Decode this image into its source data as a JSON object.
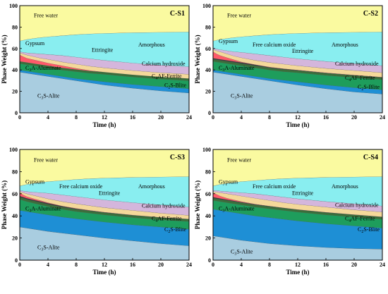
{
  "figure": {
    "x_axis_label": "Time (h)",
    "y_axis_label": "Phase Weight (%)"
  },
  "colors": {
    "alite": "#a9cde0",
    "belite": "#1e8fd5",
    "ferrite": "#1e9d5c",
    "aluminate": "#3a6f3a",
    "hydroxide": "#d4b6dc",
    "ettringite": "#f4d89a",
    "amorphous": "#89eef0",
    "free_water": "#fafaa0",
    "gypsum": "#ff5a6a",
    "free_calcium_oxide": "#3a3a3a"
  },
  "chart_data": [
    {
      "type": "area",
      "title": "C-S1",
      "x_ticks": [
        0,
        4,
        8,
        12,
        16,
        20,
        24
      ],
      "y_ticks": [
        0,
        20,
        40,
        60,
        80,
        100
      ],
      "xlim": [
        0,
        24
      ],
      "ylim": [
        0,
        100
      ],
      "stacking": "cumulative boundaries, bottom to top",
      "x": [
        0,
        0.5,
        1,
        2,
        3,
        4,
        6,
        8,
        10,
        12,
        16,
        20,
        24
      ],
      "series": [
        {
          "name": "C3S-Alite",
          "color_key": "alite",
          "upper": [
            38,
            37.5,
            37,
            36,
            35,
            34,
            32,
            30,
            28,
            26,
            23,
            20.5,
            18.5
          ]
        },
        {
          "name": "C2S-Blite",
          "color_key": "belite",
          "upper": [
            40,
            39.5,
            39,
            38,
            37,
            36,
            34,
            32,
            30.5,
            29,
            26.5,
            24.5,
            22.5
          ]
        },
        {
          "name": "C4AF-Ferrite",
          "color_key": "ferrite",
          "upper": [
            46,
            45.5,
            45,
            44,
            43,
            42,
            40,
            38.5,
            37,
            36,
            33.5,
            31.5,
            30
          ]
        },
        {
          "name": "C3A-Aluminate",
          "color_key": "aluminate",
          "upper": [
            48,
            47.5,
            47,
            46,
            45,
            44,
            42,
            40.5,
            39,
            38,
            35.5,
            33.5,
            32
          ]
        },
        {
          "name": "Gypsum",
          "color_key": "gypsum",
          "upper": [
            54,
            52.5,
            51,
            49.5,
            48,
            46.5,
            44,
            41.5,
            39.5,
            38,
            35.5,
            33.5,
            32
          ]
        },
        {
          "name": "Ettringite",
          "color_key": "ettringite",
          "upper": [
            56,
            55,
            54,
            52.5,
            51,
            50,
            47.5,
            45.5,
            43.5,
            42,
            39.5,
            37.5,
            36
          ]
        },
        {
          "name": "Calcium hydroxide",
          "color_key": "hydroxide",
          "upper": [
            57,
            56.5,
            56,
            55.5,
            55,
            54.5,
            53.5,
            52,
            50.5,
            49,
            46.5,
            44.5,
            43
          ]
        },
        {
          "name": "Amorphous",
          "color_key": "amorphous",
          "upper": [
            67,
            67.8,
            68.5,
            69.5,
            70.3,
            71,
            72,
            73,
            73.7,
            74.2,
            74.8,
            75.2,
            75.5
          ]
        },
        {
          "name": "Free water",
          "color_key": "free_water",
          "upper": [
            100,
            100,
            100,
            100,
            100,
            100,
            100,
            100,
            100,
            100,
            100,
            100,
            100
          ]
        }
      ],
      "labels": [
        {
          "text": "Free water",
          "x": 2,
          "y": 89
        },
        {
          "text": "Gypsum",
          "x": 0.8,
          "y": 63
        },
        {
          "text": "Amorphous",
          "x": 16.8,
          "y": 62
        },
        {
          "text": "Ettringite",
          "x": 10.2,
          "y": 57
        },
        {
          "text": "Calcium hydroxide",
          "x": 17.3,
          "y": 44
        },
        {
          "text": "C3A-Aluminate",
          "x": 0.8,
          "y": 40
        },
        {
          "text": "C4AF-Ferrite",
          "x": 18.7,
          "y": 32.5
        },
        {
          "text": "C2S-Blite",
          "x": 20.5,
          "y": 24
        },
        {
          "text": "C3S-Alite",
          "x": 2.5,
          "y": 14
        }
      ]
    },
    {
      "type": "area",
      "title": "C-S2",
      "x_ticks": [
        0,
        4,
        8,
        12,
        16,
        20,
        24
      ],
      "y_ticks": [
        0,
        20,
        40,
        60,
        80,
        100
      ],
      "xlim": [
        0,
        24
      ],
      "ylim": [
        0,
        100
      ],
      "stacking": "cumulative boundaries, bottom to top",
      "x": [
        0,
        0.5,
        1,
        2,
        3,
        4,
        6,
        8,
        10,
        12,
        16,
        20,
        24
      ],
      "series": [
        {
          "name": "C3S-Alite",
          "color_key": "alite",
          "upper": [
            38,
            37.5,
            37,
            36,
            35,
            34,
            32,
            30,
            28,
            26,
            22.5,
            19.5,
            17.5
          ]
        },
        {
          "name": "C2S-Blite",
          "color_key": "belite",
          "upper": [
            40,
            39.5,
            39,
            38,
            37,
            36,
            34,
            32,
            30.5,
            29,
            26,
            23.5,
            21.5
          ]
        },
        {
          "name": "C4AF-Ferrite",
          "color_key": "ferrite",
          "upper": [
            48,
            47.5,
            47,
            46,
            45,
            44,
            42,
            40,
            38.5,
            37.5,
            35,
            33,
            31
          ]
        },
        {
          "name": "C3A-Aluminate",
          "color_key": "aluminate",
          "upper": [
            50,
            49.5,
            49,
            48,
            47,
            46,
            44,
            42,
            40.5,
            39.5,
            37,
            35,
            33
          ]
        },
        {
          "name": "Free calcium oxide",
          "color_key": "free_calcium_oxide",
          "upper": [
            51,
            50.5,
            50,
            49,
            48,
            47,
            44.8,
            42.5,
            41,
            39.8,
            37.2,
            35.1,
            33.1
          ]
        },
        {
          "name": "Gypsum",
          "color_key": "gypsum",
          "upper": [
            57,
            55,
            53.5,
            51.5,
            49.5,
            47.5,
            45,
            42.8,
            41.2,
            40,
            37.4,
            35.3,
            33.3
          ]
        },
        {
          "name": "Ettringite",
          "color_key": "ettringite",
          "upper": [
            59,
            58,
            57,
            55,
            53,
            51.5,
            49,
            47,
            45.5,
            44,
            41.5,
            39.5,
            37.5
          ]
        },
        {
          "name": "Calcium hydroxide",
          "color_key": "hydroxide",
          "upper": [
            60,
            59.5,
            59,
            58,
            57,
            56.5,
            55,
            53.5,
            52,
            50.5,
            48,
            46,
            44
          ]
        },
        {
          "name": "Amorphous",
          "color_key": "amorphous",
          "upper": [
            67,
            67.8,
            68.5,
            69.5,
            70.3,
            71,
            72,
            73,
            73.7,
            74.2,
            74.8,
            75.2,
            75.5
          ]
        },
        {
          "name": "Free water",
          "color_key": "free_water",
          "upper": [
            100,
            100,
            100,
            100,
            100,
            100,
            100,
            100,
            100,
            100,
            100,
            100,
            100
          ]
        }
      ],
      "labels": [
        {
          "text": "Free water",
          "x": 2,
          "y": 89
        },
        {
          "text": "Gypsum",
          "x": 0.8,
          "y": 65
        },
        {
          "text": "Free calcium oxide",
          "x": 5.6,
          "y": 62
        },
        {
          "text": "Amorphous",
          "x": 16.8,
          "y": 62
        },
        {
          "text": "Ettringite",
          "x": 11.2,
          "y": 56
        },
        {
          "text": "Calcium hydroxide",
          "x": 17.3,
          "y": 44
        },
        {
          "text": "C3A-Aluminate",
          "x": 0.8,
          "y": 40
        },
        {
          "text": "C4AF-Ferrite",
          "x": 18.7,
          "y": 31
        },
        {
          "text": "C2S-Blite",
          "x": 20.5,
          "y": 22.5
        },
        {
          "text": "C3S-Alite",
          "x": 2.5,
          "y": 14
        }
      ]
    },
    {
      "type": "area",
      "title": "C-S3",
      "x_ticks": [
        0,
        4,
        8,
        12,
        16,
        20,
        24
      ],
      "y_ticks": [
        0,
        20,
        40,
        60,
        80,
        100
      ],
      "xlim": [
        0,
        24
      ],
      "ylim": [
        0,
        100
      ],
      "stacking": "cumulative boundaries, bottom to top",
      "x": [
        0,
        0.5,
        1,
        2,
        3,
        4,
        6,
        8,
        10,
        12,
        16,
        20,
        24
      ],
      "series": [
        {
          "name": "C3S-Alite",
          "color_key": "alite",
          "upper": [
            30,
            29.5,
            29,
            28,
            27,
            26,
            24.5,
            23,
            21.5,
            20,
            17.5,
            15,
            13
          ]
        },
        {
          "name": "C2S-Blite",
          "color_key": "belite",
          "upper": [
            45,
            44.5,
            44,
            43,
            42,
            41,
            39,
            37.5,
            36,
            34.5,
            32,
            30,
            28
          ]
        },
        {
          "name": "C4AF-Ferrite",
          "color_key": "ferrite",
          "upper": [
            55,
            54,
            53,
            51.5,
            50,
            48.5,
            46,
            44,
            42.5,
            41,
            38.5,
            36.5,
            35
          ]
        },
        {
          "name": "C3A-Aluminate",
          "color_key": "aluminate",
          "upper": [
            57,
            56,
            55,
            53.5,
            52,
            50.5,
            48,
            46,
            44.5,
            43,
            40.5,
            38.5,
            37
          ]
        },
        {
          "name": "Free calcium oxide",
          "color_key": "free_calcium_oxide",
          "upper": [
            58,
            57,
            56,
            54.5,
            53,
            51.5,
            48.8,
            46.5,
            44.8,
            43.2,
            40.7,
            38.6,
            37.1
          ]
        },
        {
          "name": "Gypsum",
          "color_key": "gypsum",
          "upper": [
            61,
            59,
            57.5,
            55.5,
            53.8,
            52,
            49,
            46.8,
            45,
            43.4,
            40.8,
            38.7,
            37.2
          ]
        },
        {
          "name": "Ettringite",
          "color_key": "ettringite",
          "upper": [
            62,
            61,
            60,
            58.5,
            57,
            55.5,
            53,
            51,
            49.2,
            47.5,
            45,
            42.5,
            40.5
          ]
        },
        {
          "name": "Calcium hydroxide",
          "color_key": "hydroxide",
          "upper": [
            63,
            62.5,
            62,
            61.5,
            61,
            60.5,
            59,
            57.5,
            56,
            54.5,
            52,
            50,
            48
          ]
        },
        {
          "name": "Amorphous",
          "color_key": "amorphous",
          "upper": [
            67,
            67.8,
            68.5,
            69.5,
            70.3,
            71,
            72,
            73,
            73.7,
            74.2,
            74.8,
            75.2,
            75.5
          ]
        },
        {
          "name": "Free water",
          "color_key": "free_water",
          "upper": [
            100,
            100,
            100,
            100,
            100,
            100,
            100,
            100,
            100,
            100,
            100,
            100,
            100
          ]
        }
      ],
      "labels": [
        {
          "text": "Free water",
          "x": 2,
          "y": 89
        },
        {
          "text": "Gypsum",
          "x": 0.8,
          "y": 69
        },
        {
          "text": "Free calcium oxide",
          "x": 5.6,
          "y": 65
        },
        {
          "text": "Amorphous",
          "x": 16.8,
          "y": 65
        },
        {
          "text": "Ettringite",
          "x": 11.2,
          "y": 59
        },
        {
          "text": "Calcium hydroxide",
          "x": 17.3,
          "y": 47.5
        },
        {
          "text": "C3A-Aluminate",
          "x": 0.8,
          "y": 45
        },
        {
          "text": "C4AF-Ferrite",
          "x": 18.7,
          "y": 36
        },
        {
          "text": "C2S-Blite",
          "x": 20.5,
          "y": 26
        },
        {
          "text": "C3S-Alite",
          "x": 2.5,
          "y": 10
        }
      ]
    },
    {
      "type": "area",
      "title": "C-S4",
      "x_ticks": [
        0,
        4,
        8,
        12,
        16,
        20,
        24
      ],
      "y_ticks": [
        0,
        20,
        40,
        60,
        80,
        100
      ],
      "xlim": [
        0,
        24
      ],
      "ylim": [
        0,
        100
      ],
      "stacking": "cumulative boundaries, bottom to top",
      "x": [
        0,
        0.5,
        1,
        2,
        3,
        4,
        6,
        8,
        10,
        12,
        16,
        20,
        24
      ],
      "series": [
        {
          "name": "C3S-Alite",
          "color_key": "alite",
          "upper": [
            22,
            21.5,
            21,
            20,
            19,
            18,
            16.5,
            15,
            14,
            13,
            11.5,
            10.5,
            10
          ]
        },
        {
          "name": "C2S-Blite",
          "color_key": "belite",
          "upper": [
            46,
            45.5,
            45,
            44,
            43,
            42,
            40,
            38.5,
            37,
            35.5,
            33,
            31,
            29
          ]
        },
        {
          "name": "C4AF-Ferrite",
          "color_key": "ferrite",
          "upper": [
            54,
            53.5,
            53,
            52,
            51,
            50,
            48,
            46.5,
            45,
            43.5,
            41,
            39,
            37
          ]
        },
        {
          "name": "C3A-Aluminate",
          "color_key": "aluminate",
          "upper": [
            56,
            55.5,
            55,
            54,
            53,
            52,
            50,
            48.5,
            47,
            45.5,
            43,
            41,
            39
          ]
        },
        {
          "name": "Free calcium oxide",
          "color_key": "free_calcium_oxide",
          "upper": [
            57,
            56.4,
            55.8,
            54.7,
            53.6,
            52.5,
            50.4,
            48.8,
            47.2,
            45.7,
            43.2,
            41.1,
            39.1
          ]
        },
        {
          "name": "Gypsum",
          "color_key": "gypsum",
          "upper": [
            61,
            59.5,
            58,
            56,
            54.5,
            53,
            50.6,
            48.9,
            47.3,
            45.8,
            43.3,
            41.2,
            39.2
          ]
        },
        {
          "name": "Ettringite",
          "color_key": "ettringite",
          "upper": [
            62,
            61.5,
            61,
            60,
            59,
            58,
            56,
            54,
            52,
            50.5,
            48,
            45.5,
            43.5
          ]
        },
        {
          "name": "Calcium hydroxide",
          "color_key": "hydroxide",
          "upper": [
            63,
            62.8,
            62.5,
            62,
            61.5,
            61,
            60,
            58.5,
            57,
            55.5,
            53,
            51,
            49
          ]
        },
        {
          "name": "Amorphous",
          "color_key": "amorphous",
          "upper": [
            67,
            67.8,
            68.5,
            69.5,
            70.3,
            71,
            72,
            73,
            73.7,
            74.2,
            74.8,
            75.2,
            75.5
          ]
        },
        {
          "name": "Free water",
          "color_key": "free_water",
          "upper": [
            100,
            100,
            100,
            100,
            100,
            100,
            100,
            100,
            100,
            100,
            100,
            100,
            100
          ]
        }
      ],
      "labels": [
        {
          "text": "Free water",
          "x": 2,
          "y": 89
        },
        {
          "text": "Gypsum",
          "x": 0.8,
          "y": 69
        },
        {
          "text": "Free calcium oxide",
          "x": 5.6,
          "y": 65
        },
        {
          "text": "Amorphous",
          "x": 16.8,
          "y": 65
        },
        {
          "text": "Ettringite",
          "x": 11.2,
          "y": 59
        },
        {
          "text": "Calcium hydroxide",
          "x": 17.3,
          "y": 48
        },
        {
          "text": "C3A-Aluminate",
          "x": 0.8,
          "y": 45
        },
        {
          "text": "C4AF-Ferrite",
          "x": 18.7,
          "y": 36
        },
        {
          "text": "C2S-Blite",
          "x": 20.5,
          "y": 26
        },
        {
          "text": "C3S-Alite",
          "x": 2.5,
          "y": 6
        }
      ]
    }
  ]
}
